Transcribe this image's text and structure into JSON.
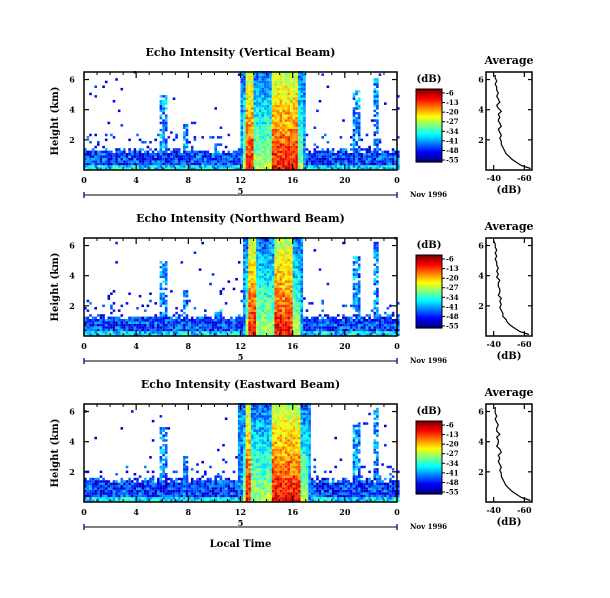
{
  "figure": {
    "bottom_xlabel": "Local Time",
    "date_label": "Nov 1996",
    "day_marker": "5"
  },
  "chart_data": [
    {
      "type": "heatmap",
      "title": "Echo Intensity (Vertical Beam)",
      "xlabel": "",
      "ylabel": "Height (km)",
      "xlim": [
        0,
        24
      ],
      "ylim": [
        0,
        6.5
      ],
      "x_ticks": [
        "0",
        "4",
        "8",
        "12",
        "16",
        "20",
        "0"
      ],
      "y_ticks": [
        "2",
        "4",
        "6"
      ],
      "colorbar": {
        "unit": "(dB)",
        "labels": [
          "-6",
          "-13",
          "-20",
          "-27",
          "-34",
          "-41",
          "-48",
          "-55"
        ],
        "range": [
          -55,
          -6
        ]
      },
      "description_values": {
        "strong_echo_hours": [
          12.3,
          16.5
        ],
        "storm_top_km": 6.5,
        "boundary_layer_top_km": 1.0
      }
    },
    {
      "type": "line",
      "title": "Average",
      "xlabel": "(dB)",
      "ylabel": "",
      "xlim": [
        -35,
        -65
      ],
      "ylim": [
        0,
        6.5
      ],
      "x_ticks": [
        "-40",
        "-60"
      ],
      "y_ticks": [
        "2",
        "4",
        "6"
      ],
      "series": [
        {
          "height_km": [
            0.1,
            0.3,
            0.5,
            0.7,
            0.9,
            1.1,
            1.3,
            1.5,
            1.7,
            1.9,
            2.1,
            2.3,
            2.5,
            2.7,
            2.9,
            3.1,
            3.3,
            3.5,
            3.7,
            3.9,
            4.1,
            4.3,
            4.5,
            4.7,
            4.9,
            5.1,
            5.3,
            5.5,
            5.7,
            5.9,
            6.1,
            6.3
          ],
          "db": [
            -64,
            -58,
            -55,
            -52,
            -50,
            -48,
            -47,
            -46,
            -45,
            -45,
            -44,
            -45,
            -44,
            -43,
            -45,
            -44,
            -43,
            -44,
            -43,
            -45,
            -43,
            -42,
            -44,
            -43,
            -42,
            -43,
            -42,
            -42,
            -41,
            -42,
            -41,
            -41
          ]
        }
      ]
    },
    {
      "type": "heatmap",
      "title": "Echo Intensity (Northward Beam)",
      "xlabel": "",
      "ylabel": "Height (km)",
      "xlim": [
        0,
        24
      ],
      "ylim": [
        0,
        6.5
      ],
      "x_ticks": [
        "0",
        "4",
        "8",
        "12",
        "16",
        "20",
        "0"
      ],
      "y_ticks": [
        "2",
        "4",
        "6"
      ],
      "colorbar": {
        "unit": "(dB)",
        "labels": [
          "-6",
          "-13",
          "-20",
          "-27",
          "-34",
          "-41",
          "-48",
          "-55"
        ],
        "range": [
          -55,
          -6
        ]
      },
      "description_values": {
        "strong_echo_hours": [
          12.5,
          16.2
        ],
        "storm_top_km": 6.5,
        "boundary_layer_top_km": 1.0
      }
    },
    {
      "type": "line",
      "title": "Average",
      "xlabel": "(dB)",
      "ylabel": "",
      "xlim": [
        -35,
        -65
      ],
      "ylim": [
        0,
        6.5
      ],
      "x_ticks": [
        "-40",
        "-60"
      ],
      "y_ticks": [
        "2",
        "4",
        "6"
      ],
      "series": [
        {
          "height_km": [
            0.1,
            0.3,
            0.5,
            0.7,
            0.9,
            1.1,
            1.3,
            1.5,
            1.7,
            1.9,
            2.1,
            2.3,
            2.5,
            2.7,
            2.9,
            3.1,
            3.3,
            3.5,
            3.7,
            3.9,
            4.1,
            4.3,
            4.5,
            4.7,
            4.9,
            5.1,
            5.3,
            5.5,
            5.7,
            5.9,
            6.1,
            6.3
          ],
          "db": [
            -63,
            -57,
            -54,
            -51,
            -49,
            -48,
            -46,
            -46,
            -45,
            -44,
            -45,
            -44,
            -45,
            -43,
            -44,
            -44,
            -43,
            -43,
            -44,
            -42,
            -43,
            -42,
            -43,
            -42,
            -42,
            -41,
            -42,
            -41,
            -42,
            -41,
            -41,
            -40
          ]
        }
      ]
    },
    {
      "type": "heatmap",
      "title": "Echo Intensity (Eastward Beam)",
      "xlabel": "",
      "ylabel": "Height (km)",
      "xlim": [
        0,
        24
      ],
      "ylim": [
        0,
        6.5
      ],
      "x_ticks": [
        "0",
        "4",
        "8",
        "12",
        "16",
        "20",
        "0"
      ],
      "y_ticks": [
        "2",
        "4",
        "6"
      ],
      "colorbar": {
        "unit": "(dB)",
        "labels": [
          "-6",
          "-13",
          "-20",
          "-27",
          "-34",
          "-41",
          "-48",
          "-55"
        ],
        "range": [
          -55,
          -6
        ]
      },
      "description_values": {
        "strong_echo_hours": [
          12.2,
          16.8
        ],
        "storm_top_km": 6.5,
        "boundary_layer_top_km": 1.2
      }
    },
    {
      "type": "line",
      "title": "Average",
      "xlabel": "(dB)",
      "ylabel": "",
      "xlim": [
        -35,
        -65
      ],
      "ylim": [
        0,
        6.5
      ],
      "x_ticks": [
        "-40",
        "-60"
      ],
      "y_ticks": [
        "2",
        "4",
        "6"
      ],
      "series": [
        {
          "height_km": [
            0.1,
            0.3,
            0.5,
            0.7,
            0.9,
            1.1,
            1.3,
            1.5,
            1.7,
            1.9,
            2.1,
            2.3,
            2.5,
            2.7,
            2.9,
            3.1,
            3.3,
            3.5,
            3.7,
            3.9,
            4.1,
            4.3,
            4.5,
            4.7,
            4.9,
            5.1,
            5.3,
            5.5,
            5.7,
            5.9,
            6.1,
            6.3
          ],
          "db": [
            -64,
            -58,
            -55,
            -52,
            -50,
            -48,
            -47,
            -46,
            -45,
            -45,
            -44,
            -45,
            -44,
            -43,
            -44,
            -43,
            -45,
            -44,
            -42,
            -43,
            -43,
            -42,
            -44,
            -42,
            -42,
            -43,
            -42,
            -41,
            -42,
            -41,
            -41,
            -41
          ]
        }
      ]
    }
  ]
}
